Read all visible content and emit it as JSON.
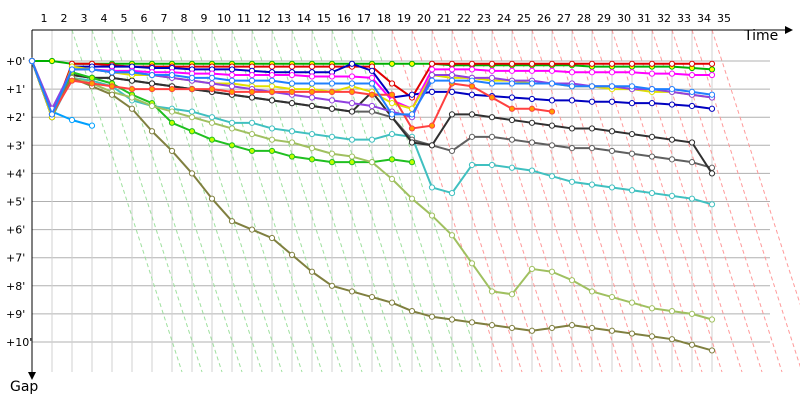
{
  "chart_data": {
    "type": "line",
    "xlabel": "Time",
    "ylabel": "Gap",
    "x_ticks": [
      "1",
      "2",
      "3",
      "4",
      "5",
      "6",
      "7",
      "8",
      "9",
      "10",
      "11",
      "12",
      "13",
      "14",
      "15",
      "16",
      "17",
      "18",
      "19",
      "20",
      "21",
      "22",
      "23",
      "24",
      "25",
      "26",
      "27",
      "28",
      "29",
      "30",
      "31",
      "32",
      "33",
      "34",
      "35"
    ],
    "y_ticks": [
      "+0'",
      "+1'",
      "+2'",
      "+3'",
      "+4'",
      "+5'",
      "+6'",
      "+7'",
      "+8'",
      "+9'",
      "+10'"
    ],
    "xlim": [
      1,
      35
    ],
    "ylim": [
      0,
      10.5
    ],
    "grid": true,
    "series": [
      {
        "color": "#00b000",
        "marker": "#ffff00",
        "values": [
          0,
          0,
          0.1,
          0.1,
          0.1,
          0.1,
          0.1,
          0.1,
          0.1,
          0.1,
          0.1,
          0.1,
          0.1,
          0.1,
          0.1,
          0.1,
          0.1,
          0.1,
          0.1,
          0.1,
          0.1,
          0.15,
          0.15,
          0.15,
          0.15,
          0.15,
          0.15,
          0.15,
          0.2,
          0.2,
          0.2,
          0.2,
          0.2,
          0.25,
          0.3
        ]
      },
      {
        "color": "#e00000",
        "values": [
          0,
          2,
          0.1,
          0.1,
          0.15,
          0.2,
          0.2,
          0.2,
          0.2,
          0.2,
          0.2,
          0.2,
          0.2,
          0.2,
          0.2,
          0.2,
          0.2,
          0.2,
          0.8,
          1.3,
          0.1,
          0.1,
          0.1,
          0.1,
          0.1,
          0.1,
          0.1,
          0.1,
          0.1,
          0.1,
          0.1,
          0.1,
          0.1,
          0.1,
          0.1
        ]
      },
      {
        "color": "#0000c0",
        "values": [
          0,
          2,
          0.2,
          0.2,
          0.2,
          0.2,
          0.25,
          0.25,
          0.3,
          0.3,
          0.3,
          0.35,
          0.4,
          0.4,
          0.4,
          0.4,
          0.1,
          0.35,
          1.3,
          1.2,
          1.1,
          1.1,
          1.2,
          1.25,
          1.3,
          1.35,
          1.4,
          1.4,
          1.45,
          1.45,
          1.5,
          1.5,
          1.55,
          1.6,
          1.7
        ]
      },
      {
        "color": "#ff00ff",
        "values": [
          0,
          2,
          0.3,
          0.3,
          0.35,
          0.35,
          0.4,
          0.4,
          0.45,
          0.45,
          0.5,
          0.5,
          0.5,
          0.5,
          0.55,
          0.55,
          0.55,
          0.6,
          1.4,
          1.7,
          0.3,
          0.3,
          0.3,
          0.35,
          0.35,
          0.35,
          0.35,
          0.4,
          0.4,
          0.4,
          0.4,
          0.45,
          0.45,
          0.5,
          0.5
        ]
      },
      {
        "color": "#00a0ff",
        "values": [
          0,
          1.8,
          2.1,
          2.3
        ]
      },
      {
        "color": "#40c0c0",
        "values": [
          0,
          2,
          0.6,
          0.7,
          0.9,
          1.4,
          1.6,
          1.7,
          1.8,
          2.0,
          2.2,
          2.2,
          2.4,
          2.5,
          2.6,
          2.7,
          2.8,
          2.8,
          2.6,
          2.7,
          4.5,
          4.7,
          3.7,
          3.7,
          3.8,
          3.9,
          4.1,
          4.3,
          4.4,
          4.5,
          4.6,
          4.7,
          4.8,
          4.9,
          5.1
        ]
      },
      {
        "color": "#606060",
        "values": [
          0,
          1.9,
          0.5,
          0.6,
          0.6,
          0.7,
          0.8,
          0.9,
          1.0,
          1.1,
          1.2,
          1.3,
          1.4,
          1.5,
          1.6,
          1.7,
          1.8,
          1.8,
          2.0,
          2.8,
          3.0,
          3.2,
          2.7,
          2.7,
          2.8,
          2.9,
          3.0,
          3.1,
          3.1,
          3.2,
          3.3,
          3.4,
          3.5,
          3.6,
          3.8
        ]
      },
      {
        "color": "#303030",
        "values": [
          0,
          1.9,
          0.5,
          0.6,
          0.6,
          0.7,
          0.8,
          0.9,
          1.0,
          1.1,
          1.2,
          1.3,
          1.4,
          1.5,
          1.6,
          1.7,
          1.8,
          1.1,
          2.0,
          2.9,
          3.0,
          1.9,
          1.9,
          2.0,
          2.1,
          2.2,
          2.3,
          2.4,
          2.4,
          2.5,
          2.6,
          2.7,
          2.8,
          2.9,
          4.0
        ]
      },
      {
        "color": "#20c020",
        "marker": "#c0ff00",
        "values": [
          0,
          2,
          0.4,
          0.6,
          0.8,
          1.2,
          1.5,
          2.2,
          2.5,
          2.8,
          3.0,
          3.2,
          3.2,
          3.4,
          3.5,
          3.6,
          3.6,
          3.6,
          3.5,
          3.6
        ]
      },
      {
        "color": "#a0c060",
        "values": [
          0,
          1.8,
          0.6,
          0.8,
          1.1,
          1.3,
          1.6,
          1.8,
          2.0,
          2.2,
          2.4,
          2.6,
          2.8,
          2.9,
          3.1,
          3.3,
          3.4,
          3.6,
          4.2,
          4.9,
          5.5,
          6.2,
          7.2,
          8.2,
          8.3,
          7.4,
          7.5,
          7.8,
          8.2,
          8.4,
          8.6,
          8.8,
          8.9,
          9.0,
          9.2
        ]
      },
      {
        "color": "#808040",
        "values": [
          0,
          1.8,
          0.6,
          0.9,
          1.2,
          1.7,
          2.5,
          3.2,
          4.0,
          4.9,
          5.7,
          6.0,
          6.3,
          6.9,
          7.5,
          8.0,
          8.2,
          8.4,
          8.6,
          8.9,
          9.1,
          9.2,
          9.3,
          9.4,
          9.5,
          9.6,
          9.5,
          9.4,
          9.5,
          9.6,
          9.7,
          9.8,
          9.9,
          10.1,
          10.3
        ]
      },
      {
        "color": "#e0e000",
        "values": [
          0,
          2,
          0.2,
          0.3,
          0.4,
          0.5,
          0.5,
          0.6,
          0.7,
          0.8,
          0.8,
          0.9,
          0.9,
          1.0,
          1.0,
          1.1,
          0.9,
          1.1,
          1.5,
          1.7,
          0.5,
          0.6,
          0.6,
          0.7,
          0.7,
          0.8,
          0.8,
          0.9,
          0.9,
          1.0,
          1.0,
          1.1,
          1.1,
          1.2,
          1.3
        ]
      },
      {
        "color": "#9040e0",
        "values": [
          0,
          1.7,
          0.3,
          0.3,
          0.4,
          0.4,
          0.5,
          0.6,
          0.7,
          0.8,
          0.9,
          1.0,
          1.1,
          1.2,
          1.3,
          1.4,
          1.5,
          1.6,
          1.8,
          2.0,
          0.5,
          0.5,
          0.6,
          0.6,
          0.7,
          0.7,
          0.8,
          0.8,
          0.9,
          0.9,
          1.0,
          1.0,
          1.1,
          1.2,
          1.3
        ]
      },
      {
        "color": "#ff4040",
        "marker": "#ffa000",
        "values": [
          0,
          1.9,
          0.7,
          0.8,
          0.9,
          1.0,
          1.0,
          1.0,
          1.0,
          1.0,
          1.1,
          1.1,
          1.1,
          1.1,
          1.1,
          1.1,
          1.1,
          1.2,
          1.2,
          2.4,
          2.3,
          0.8,
          0.9,
          1.3,
          1.7,
          1.7,
          1.8
        ]
      },
      {
        "color": "#2080ff",
        "values": [
          0,
          1.9,
          0.3,
          0.3,
          0.4,
          0.4,
          0.5,
          0.5,
          0.6,
          0.6,
          0.7,
          0.7,
          0.7,
          0.8,
          0.8,
          0.8,
          0.8,
          0.8,
          1.9,
          1.9,
          0.7,
          0.7,
          0.7,
          0.8,
          0.8,
          0.8,
          0.8,
          0.9,
          0.9,
          0.9,
          0.9,
          1.0,
          1.0,
          1.1,
          1.2
        ]
      }
    ]
  }
}
